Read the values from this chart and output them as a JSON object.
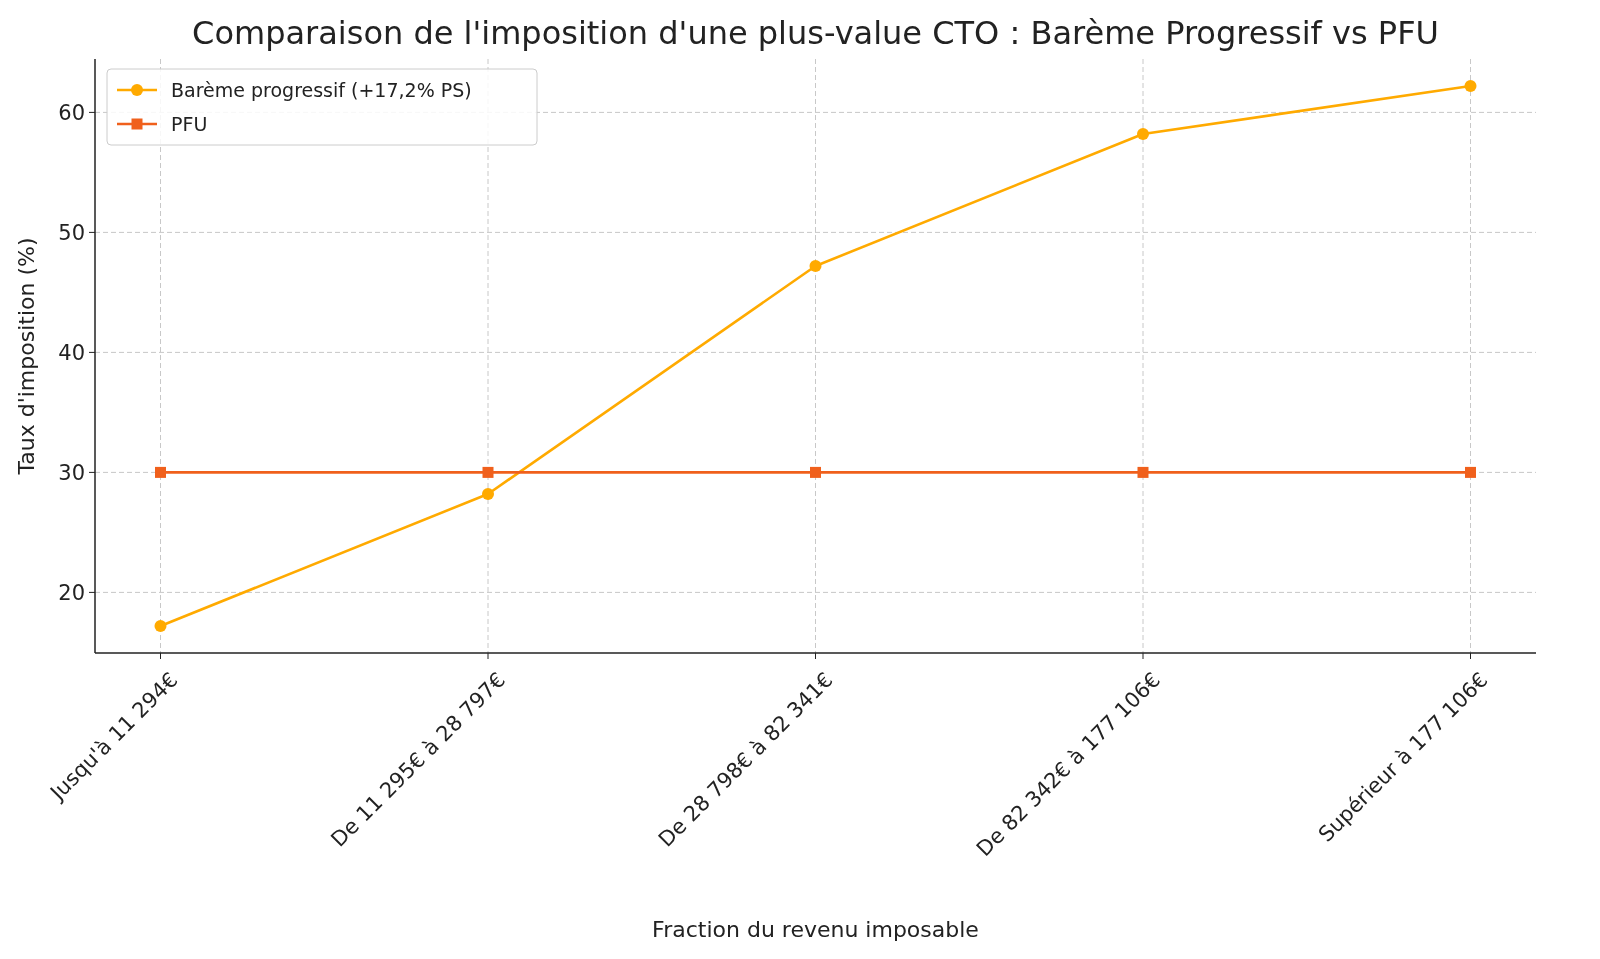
{
  "chart_data": {
    "type": "line",
    "title": "Comparaison de l'imposition d'une plus-value CTO : Barème Progressif vs PFU",
    "xlabel": "Fraction du revenu imposable",
    "ylabel": "Taux d'imposition (%)",
    "categories": [
      "Jusqu'à 11 294€",
      "De 11 295€ à 28 797€",
      "De 28 798€ à 82 341€",
      "De 82 342€ à 177 106€",
      "Supérieur à 177 106€"
    ],
    "series": [
      {
        "name": "Barème progressif (+17,2% PS)",
        "color": "#ffaa00",
        "marker": "circle",
        "values": [
          17.2,
          28.2,
          47.2,
          58.2,
          62.2
        ]
      },
      {
        "name": "PFU",
        "color": "#f0601c",
        "marker": "square",
        "values": [
          30,
          30,
          30,
          30,
          30
        ]
      }
    ],
    "ylim": [
      14.95,
      64.45
    ],
    "yticks": [
      20,
      30,
      40,
      50,
      60
    ],
    "grid": true,
    "legend": "top left",
    "line_style": "solid"
  }
}
